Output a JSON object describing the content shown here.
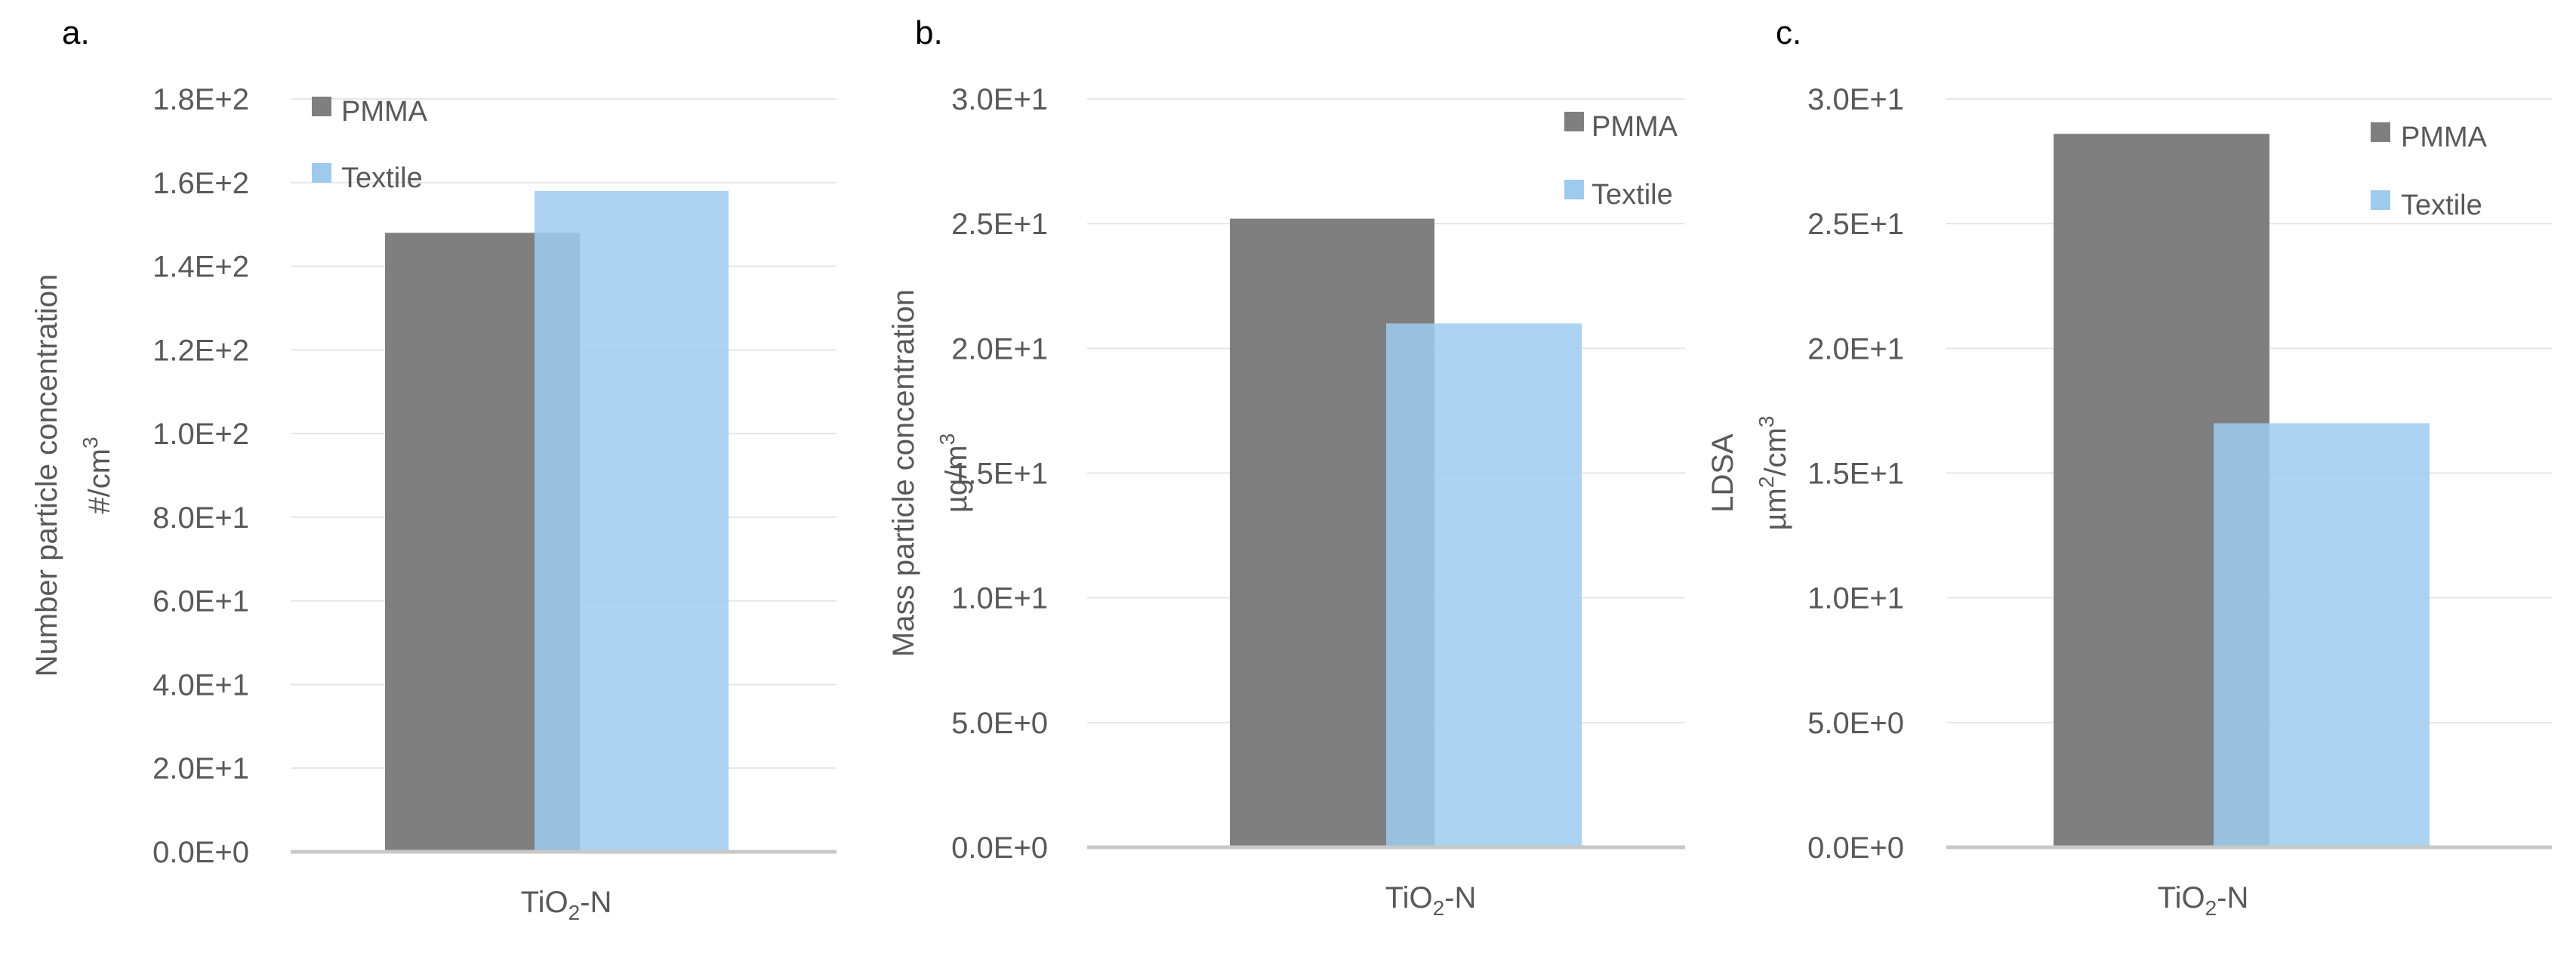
{
  "colors": {
    "pmma": "#7f7f7f",
    "textile": "#9dcbee",
    "grid": "#e6e6e6",
    "axis": "#c8c8c8",
    "text": "#595959"
  },
  "chart_data": [
    {
      "type": "bar",
      "panel": "a.",
      "categories": [
        "TiO2-N"
      ],
      "category_label": {
        "base": "TiO",
        "sub": "2",
        "suffix": "-N"
      },
      "series": [
        {
          "name": "PMMA",
          "values": [
            148
          ]
        },
        {
          "name": "Textile",
          "values": [
            158
          ]
        }
      ],
      "ylabel_lines": [
        {
          "text": "Number particle concentration"
        },
        {
          "text": "#/cm",
          "sup": "3"
        }
      ],
      "ylim": [
        0,
        180
      ],
      "ticks": [
        "0.0E+0",
        "2.0E+1",
        "4.0E+1",
        "6.0E+1",
        "8.0E+1",
        "1.0E+2",
        "1.2E+2",
        "1.4E+2",
        "1.6E+2",
        "1.8E+2"
      ],
      "tick_values": [
        0,
        20,
        40,
        60,
        80,
        100,
        120,
        140,
        160,
        180
      ],
      "legend": {
        "position": "top-left"
      }
    },
    {
      "type": "bar",
      "panel": "b.",
      "categories": [
        "TiO2-N"
      ],
      "category_label": {
        "base": "TiO",
        "sub": "2",
        "suffix": "-N"
      },
      "series": [
        {
          "name": "PMMA",
          "values": [
            25.2
          ]
        },
        {
          "name": "Textile",
          "values": [
            21
          ]
        }
      ],
      "ylabel_lines": [
        {
          "text": "Mass particle concentration"
        },
        {
          "text": "µg/m",
          "sup": "3"
        }
      ],
      "ylim": [
        0,
        30
      ],
      "ticks": [
        "0.0E+0",
        "5.0E+0",
        "1.0E+1",
        "1.5E+1",
        "2.0E+1",
        "2.5E+1",
        "3.0E+1"
      ],
      "tick_values": [
        0,
        5,
        10,
        15,
        20,
        25,
        30
      ],
      "legend": {
        "position": "top-right"
      }
    },
    {
      "type": "bar",
      "panel": "c.",
      "categories": [
        "TiO2-N"
      ],
      "category_label": {
        "base": "TiO",
        "sub": "2",
        "suffix": "-N"
      },
      "series": [
        {
          "name": "PMMA",
          "values": [
            28.6
          ]
        },
        {
          "name": "Textile",
          "values": [
            17
          ]
        }
      ],
      "ylabel_lines": [
        {
          "text": "LDSA"
        },
        {
          "text": "µm",
          "sup": "2",
          "text2": "/cm",
          "sup2": "3"
        }
      ],
      "ylim": [
        0,
        30
      ],
      "ticks": [
        "0.0E+0",
        "5.0E+0",
        "1.0E+1",
        "1.5E+1",
        "2.0E+1",
        "2.5E+1",
        "3.0E+1"
      ],
      "tick_values": [
        0,
        5,
        10,
        15,
        20,
        25,
        30
      ],
      "legend": {
        "position": "top-right"
      }
    }
  ]
}
